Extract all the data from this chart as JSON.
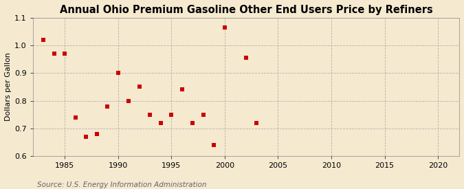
{
  "title": "Annual Ohio Premium Gasoline Other End Users Price by Refiners",
  "ylabel": "Dollars per Gallon",
  "source": "Source: U.S. Energy Information Administration",
  "years": [
    1983,
    1984,
    1985,
    1986,
    1987,
    1988,
    1989,
    1990,
    1991,
    1992,
    1993,
    1994,
    1995,
    1996,
    1997,
    1998,
    1999,
    2000,
    2002,
    2003
  ],
  "values": [
    1.02,
    0.97,
    0.97,
    0.74,
    0.67,
    0.68,
    0.78,
    0.9,
    0.8,
    0.85,
    0.75,
    0.72,
    0.75,
    0.84,
    0.72,
    0.75,
    0.64,
    1.065,
    0.955,
    0.72
  ],
  "marker_color": "#cc0000",
  "marker_size": 5,
  "xlim": [
    1982,
    2022
  ],
  "ylim": [
    0.6,
    1.1
  ],
  "xticks": [
    1985,
    1990,
    1995,
    2000,
    2005,
    2010,
    2015,
    2020
  ],
  "yticks": [
    0.6,
    0.7,
    0.8,
    0.9,
    1.0,
    1.1
  ],
  "background_color": "#f5e9d0",
  "grid_color": "#999999",
  "title_fontsize": 10.5,
  "label_fontsize": 8,
  "tick_fontsize": 8,
  "source_fontsize": 7.5
}
